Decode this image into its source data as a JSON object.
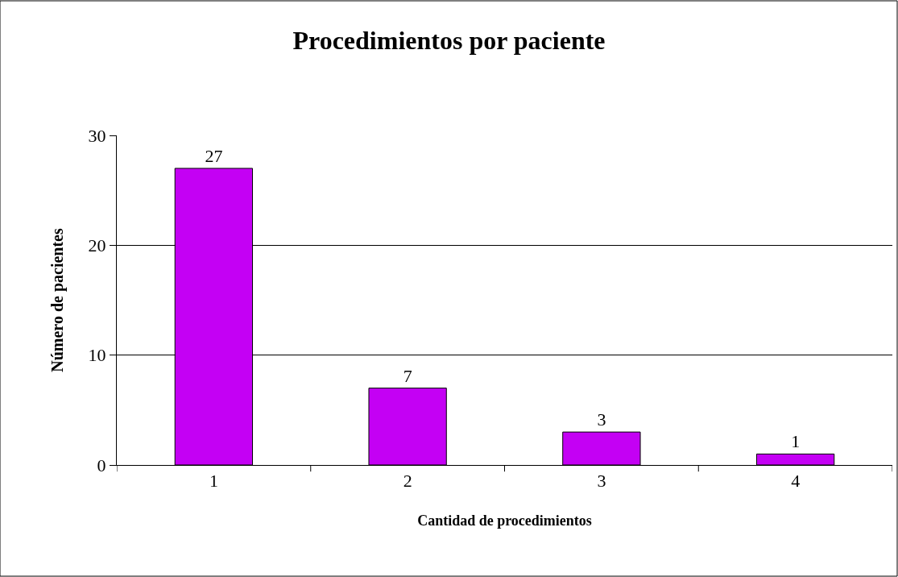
{
  "chart_data": {
    "type": "bar",
    "title": "Procedimientos por paciente",
    "xlabel": "Cantidad de procedimientos",
    "ylabel": "Número de pacientes",
    "categories": [
      "1",
      "2",
      "3",
      "4"
    ],
    "values": [
      27,
      7,
      3,
      1
    ],
    "color": "#c400f4",
    "ylim": [
      0,
      30
    ],
    "yticks": [
      0,
      10,
      20,
      30
    ],
    "grid": "y",
    "data_labels": true,
    "legend": false
  }
}
